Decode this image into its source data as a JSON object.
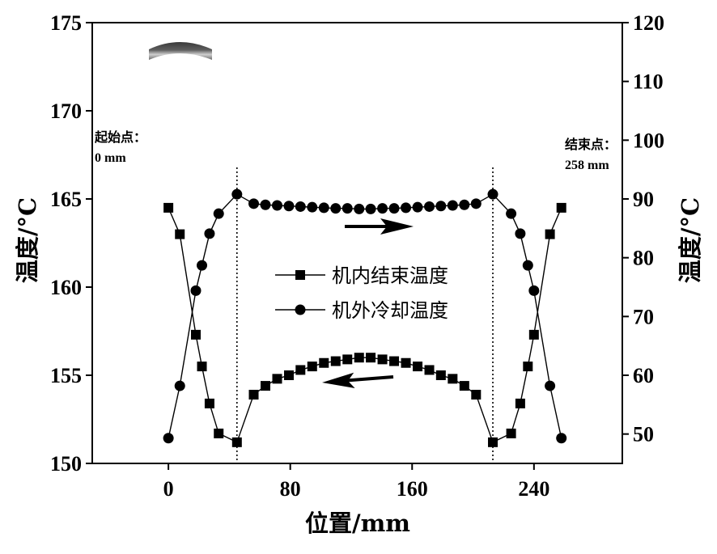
{
  "chart_data": {
    "type": "line",
    "title": "",
    "xlabel": "位置/mm",
    "ylabel": "温度/°C",
    "ylabel_right": "温度/°C",
    "xlim": [
      -50,
      298
    ],
    "ylim": [
      150,
      175
    ],
    "ylim_right": [
      45,
      120
    ],
    "xticks": [
      0,
      80,
      160,
      240
    ],
    "yticks": [
      150,
      155,
      160,
      165,
      170,
      175
    ],
    "yticks_right": [
      50,
      60,
      70,
      80,
      90,
      100,
      110,
      120
    ],
    "grid": false,
    "legend_position": "center",
    "x": [
      0,
      7.5,
      18,
      22,
      27,
      33,
      45,
      56,
      63.7,
      71.4,
      79.1,
      86.7,
      94.4,
      102.1,
      109.8,
      117.5,
      125.2,
      132.8,
      140.5,
      148.2,
      155.9,
      163.6,
      171.3,
      178.9,
      186.6,
      194.3,
      202,
      213,
      225,
      231,
      236,
      240,
      250.5,
      258
    ],
    "series": [
      {
        "name": "机内结束温度",
        "marker": "square",
        "axis": "left",
        "color": "#000000",
        "values": [
          164.5,
          163.0,
          157.3,
          155.5,
          153.4,
          151.7,
          151.2,
          153.9,
          154.4,
          154.8,
          155.0,
          155.3,
          155.5,
          155.7,
          155.8,
          155.9,
          156.0,
          156.0,
          155.9,
          155.8,
          155.7,
          155.5,
          155.3,
          155.0,
          154.8,
          154.4,
          153.9,
          151.2,
          151.7,
          153.4,
          155.5,
          157.3,
          163.0,
          164.5
        ]
      },
      {
        "name": "机外冷却温度",
        "marker": "circle",
        "axis": "right",
        "color": "#000000",
        "values": [
          49.3,
          58.2,
          74.4,
          78.7,
          84.1,
          87.5,
          90.8,
          89.2,
          89.0,
          88.9,
          88.8,
          88.7,
          88.6,
          88.5,
          88.4,
          88.4,
          88.3,
          88.3,
          88.4,
          88.4,
          88.5,
          88.6,
          88.7,
          88.8,
          88.9,
          89.0,
          89.2,
          90.8,
          87.5,
          84.1,
          78.7,
          74.4,
          58.2,
          49.3
        ]
      }
    ],
    "reference_lines": [
      {
        "x": 45,
        "style": "dotted"
      },
      {
        "x": 213,
        "style": "dotted"
      }
    ],
    "annotations": [
      {
        "text": "起始点："
      },
      {
        "text": "0 mm"
      },
      {
        "text": "结束点："
      },
      {
        "text": "258 mm"
      }
    ],
    "inset_image": "curved-strip-photo"
  }
}
